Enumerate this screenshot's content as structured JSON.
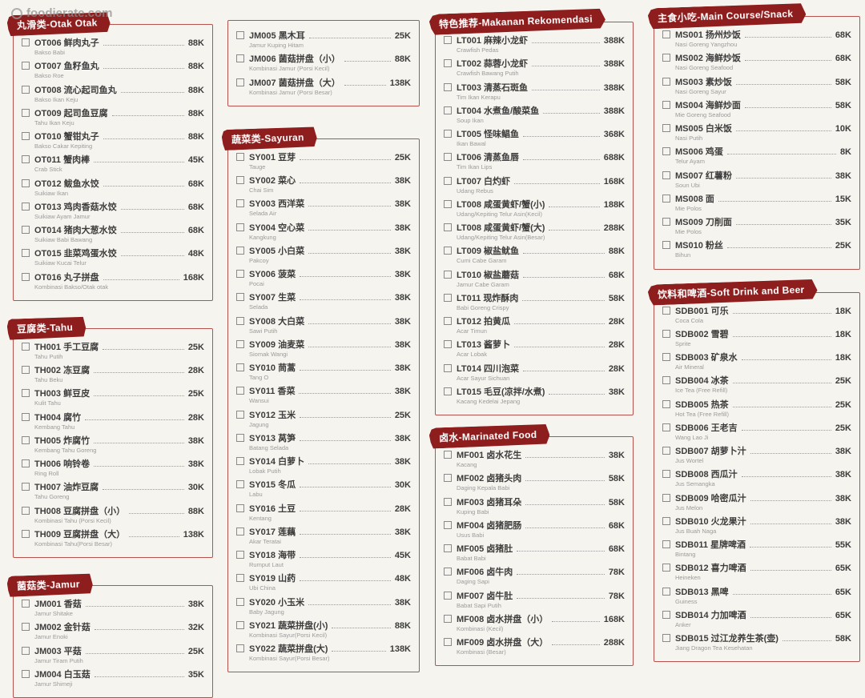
{
  "watermark": "foodierate.com",
  "colors": {
    "accent": "#8e1d1d",
    "border": "#b5524e",
    "background": "#f6f4ee"
  },
  "sections": {
    "otak": {
      "title": "丸滑类-Otak Otak",
      "items": [
        {
          "code": "OT006",
          "name": "鲜肉丸子",
          "sub": "Bakso Babi",
          "price": "88K"
        },
        {
          "code": "OT007",
          "name": "鱼籽鱼丸",
          "sub": "Bakso Roe",
          "price": "88K"
        },
        {
          "code": "OT008",
          "name": "流心起司鱼丸",
          "sub": "Bakso Ikan Keju",
          "price": "88K"
        },
        {
          "code": "OT009",
          "name": "起司鱼豆腐",
          "sub": "Tahu Ikan Keju",
          "price": "88K"
        },
        {
          "code": "OT010",
          "name": "蟹钳丸子",
          "sub": "Bakso Cakar Kepiting",
          "price": "88K"
        },
        {
          "code": "OT011",
          "name": "蟹肉棒",
          "sub": "Crab Stick",
          "price": "45K"
        },
        {
          "code": "OT012",
          "name": "鲅鱼水饺",
          "sub": "Suikiaw Ikan",
          "price": "68K"
        },
        {
          "code": "OT013",
          "name": "鸡肉香菇水饺",
          "sub": "Suikiaw Ayam Jamur",
          "price": "68K"
        },
        {
          "code": "OT014",
          "name": "猪肉大葱水饺",
          "sub": "Suikiaw Babi Bawang",
          "price": "68K"
        },
        {
          "code": "OT015",
          "name": "韭菜鸡蛋水饺",
          "sub": "Suikiaw Kucai Telur",
          "price": "48K"
        },
        {
          "code": "OT016",
          "name": "丸子拼盘",
          "sub": "Kombinasi Bakso/Otak otak",
          "price": "168K"
        }
      ]
    },
    "tahu": {
      "title": "豆腐类-Tahu",
      "items": [
        {
          "code": "TH001",
          "name": "手工豆腐",
          "sub": "Tahu Putih",
          "price": "25K"
        },
        {
          "code": "TH002",
          "name": "冻豆腐",
          "sub": "Tahu Beku",
          "price": "28K"
        },
        {
          "code": "TH003",
          "name": "鲜豆皮",
          "sub": "Kulit Tahu",
          "price": "25K"
        },
        {
          "code": "TH004",
          "name": "腐竹",
          "sub": "Kembang Tahu",
          "price": "28K"
        },
        {
          "code": "TH005",
          "name": "炸腐竹",
          "sub": "Kembang Tahu Goreng",
          "price": "38K"
        },
        {
          "code": "TH006",
          "name": "响铃卷",
          "sub": "Ring Roll",
          "price": "38K"
        },
        {
          "code": "TH007",
          "name": "油炸豆腐",
          "sub": "Tahu Goreng",
          "price": "30K"
        },
        {
          "code": "TH008",
          "name": "豆腐拼盘（小）",
          "sub": "Kombinasi Tahu (Porsi Kecil)",
          "price": "88K"
        },
        {
          "code": "TH009",
          "name": "豆腐拼盘（大）",
          "sub": "Kombinasi Tahu(Porsi Besar)",
          "price": "138K"
        }
      ]
    },
    "jamur": {
      "title": "菌菇类-Jamur",
      "items": [
        {
          "code": "JM001",
          "name": "香菇",
          "sub": "Jamur Shitake",
          "price": "38K"
        },
        {
          "code": "JM002",
          "name": "金针菇",
          "sub": "Jamur Enoki",
          "price": "32K"
        },
        {
          "code": "JM003",
          "name": "平菇",
          "sub": "Jamur Tiram Putih",
          "price": "25K"
        },
        {
          "code": "JM004",
          "name": "白玉菇",
          "sub": "Jamur Shimeji",
          "price": "35K"
        }
      ]
    },
    "jamur2": {
      "title": "",
      "items": [
        {
          "code": "JM005",
          "name": "黑木耳",
          "sub": "Jamur Kuping Hitam",
          "price": "25K"
        },
        {
          "code": "JM006",
          "name": "菌菇拼盘（小）",
          "sub": "Kombinasi Jamur (Porsi Kecil)",
          "price": "88K"
        },
        {
          "code": "JM007",
          "name": "菌菇拼盘（大）",
          "sub": "Kombinasi Jamur (Porsi Besar)",
          "price": "138K"
        }
      ]
    },
    "sayuran": {
      "title": "蔬菜类-Sayuran",
      "items": [
        {
          "code": "SY001",
          "name": "豆芽",
          "sub": "Tauge",
          "price": "25K"
        },
        {
          "code": "SY002",
          "name": "菜心",
          "sub": "Chai Sim",
          "price": "38K"
        },
        {
          "code": "SY003",
          "name": "西洋菜",
          "sub": "Selada Air",
          "price": "38K"
        },
        {
          "code": "SY004",
          "name": "空心菜",
          "sub": "Kangkung",
          "price": "38K"
        },
        {
          "code": "SY005",
          "name": "小白菜",
          "sub": "Pakcoy",
          "price": "38K"
        },
        {
          "code": "SY006",
          "name": "菠菜",
          "sub": "Pocai",
          "price": "38K"
        },
        {
          "code": "SY007",
          "name": "生菜",
          "sub": "Selada",
          "price": "38K"
        },
        {
          "code": "SY008",
          "name": "大白菜",
          "sub": "Sawi Putih",
          "price": "38K"
        },
        {
          "code": "SY009",
          "name": "油麦菜",
          "sub": "Siomak Wangi",
          "price": "38K"
        },
        {
          "code": "SY010",
          "name": "茼蒿",
          "sub": "Tang O",
          "price": "38K"
        },
        {
          "code": "SY011",
          "name": "香菜",
          "sub": "Wansui",
          "price": "38K"
        },
        {
          "code": "SY012",
          "name": "玉米",
          "sub": "Jagung",
          "price": "25K"
        },
        {
          "code": "SY013",
          "name": "莴笋",
          "sub": "Batang Selada",
          "price": "38K"
        },
        {
          "code": "SY014",
          "name": "白萝卜",
          "sub": "Lobak Putih",
          "price": "38K"
        },
        {
          "code": "SY015",
          "name": "冬瓜",
          "sub": "Labu",
          "price": "30K"
        },
        {
          "code": "SY016",
          "name": "土豆",
          "sub": "Kentang",
          "price": "28K"
        },
        {
          "code": "SY017",
          "name": "莲藕",
          "sub": "Akar Teratai",
          "price": "38K"
        },
        {
          "code": "SY018",
          "name": "海带",
          "sub": "Rumput Laut",
          "price": "45K"
        },
        {
          "code": "SY019",
          "name": "山药",
          "sub": "Ubi China",
          "price": "48K"
        },
        {
          "code": "SY020",
          "name": "小玉米",
          "sub": "Baby Jagung",
          "price": "38K"
        },
        {
          "code": "SY021",
          "name": "蔬菜拼盘(小)",
          "sub": "Kombinasi Sayur(Porsi Kecil)",
          "price": "88K"
        },
        {
          "code": "SY022",
          "name": "蔬菜拼盘(大)",
          "sub": "Kombinasi Sayur(Porsi Besar)",
          "price": "138K"
        }
      ]
    },
    "rekomendasi": {
      "title": "特色推荐-Makanan Rekomendasi",
      "items": [
        {
          "code": "LT001",
          "name": "麻辣小龙虾",
          "sub": "Crawfish Pedas",
          "price": "388K"
        },
        {
          "code": "LT002",
          "name": "蒜蓉小龙虾",
          "sub": "Crawfish Bawang Putih",
          "price": "388K"
        },
        {
          "code": "LT003",
          "name": "清蒸石斑鱼",
          "sub": "Tim Ikan Kerapu",
          "price": "388K"
        },
        {
          "code": "LT004",
          "name": "水煮鱼/酸菜鱼",
          "sub": "Soup Ikan",
          "price": "388K"
        },
        {
          "code": "LT005",
          "name": "怪味鲳鱼",
          "sub": "Ikan Bawal",
          "price": "368K"
        },
        {
          "code": "LT006",
          "name": "清蒸鱼唇",
          "sub": "Tim Ikan Lips",
          "price": "688K"
        },
        {
          "code": "LT007",
          "name": "白灼虾",
          "sub": "Udang Rebus",
          "price": "168K"
        },
        {
          "code": "LT008",
          "name": "咸蛋黄虾/蟹(小)",
          "sub": "Udang/Kepiting Telur Asin(Kecil)",
          "price": "188K"
        },
        {
          "code": "LT008",
          "name": "咸蛋黄虾/蟹(大)",
          "sub": "Udang/Kepiting Telur Asin(Besar)",
          "price": "288K"
        },
        {
          "code": "LT009",
          "name": "椒盐鱿鱼",
          "sub": "Cumi Cabe Garam",
          "price": "88K"
        },
        {
          "code": "LT010",
          "name": "椒盐蘑菇",
          "sub": "Jamur Cabe Garam",
          "price": "68K"
        },
        {
          "code": "LT011",
          "name": "现炸酥肉",
          "sub": "Babi Goreng Crispy",
          "price": "58K"
        },
        {
          "code": "LT012",
          "name": "拍黄瓜",
          "sub": "Acar Timun",
          "price": "28K"
        },
        {
          "code": "LT013",
          "name": "酱萝卜",
          "sub": "Acar Lobak",
          "price": "28K"
        },
        {
          "code": "LT014",
          "name": "四川泡菜",
          "sub": "Acar Sayur Sichuan",
          "price": "28K"
        },
        {
          "code": "LT015",
          "name": "毛豆(凉拌/水煮)",
          "sub": "Kacang Kedelai Jepang",
          "price": "38K"
        }
      ]
    },
    "marinated": {
      "title": "卤水-Marinated Food",
      "items": [
        {
          "code": "MF001",
          "name": "卤水花生",
          "sub": "Kacang",
          "price": "38K"
        },
        {
          "code": "MF002",
          "name": "卤猪头肉",
          "sub": "Daging Kepala Babi",
          "price": "58K"
        },
        {
          "code": "MF003",
          "name": "卤猪耳朵",
          "sub": "Kuping Babi",
          "price": "58K"
        },
        {
          "code": "MF004",
          "name": "卤猪肥肠",
          "sub": "Usus Babi",
          "price": "68K"
        },
        {
          "code": "MF005",
          "name": "卤猪肚",
          "sub": "Babat Babi",
          "price": "68K"
        },
        {
          "code": "MF006",
          "name": "卤牛肉",
          "sub": "Daging Sapi",
          "price": "78K"
        },
        {
          "code": "MF007",
          "name": "卤牛肚",
          "sub": "Babat Sapi Putih",
          "price": "78K"
        },
        {
          "code": "MF008",
          "name": "卤水拼盘（小）",
          "sub": "Kombinasi (Kecil)",
          "price": "168K"
        },
        {
          "code": "MF009",
          "name": "卤水拼盘（大）",
          "sub": "Kombinasi (Besar)",
          "price": "288K"
        }
      ]
    },
    "main": {
      "title": "主食小吃-Main Course/Snack",
      "items": [
        {
          "code": "MS001",
          "name": "扬州炒饭",
          "sub": "Nasi Goreng Yangzhou",
          "price": "68K"
        },
        {
          "code": "MS002",
          "name": "海鲜炒饭",
          "sub": "Nasi Goreng Seafood",
          "price": "68K"
        },
        {
          "code": "MS003",
          "name": "素炒饭",
          "sub": "Nasi Goreng Sayur",
          "price": "58K"
        },
        {
          "code": "MS004",
          "name": "海鲜炒面",
          "sub": "Mie Goreng Seafood",
          "price": "58K"
        },
        {
          "code": "MS005",
          "name": "白米饭",
          "sub": "Nasi Putih",
          "price": "10K"
        },
        {
          "code": "MS006",
          "name": "鸡蛋",
          "sub": "Telur Ayam",
          "price": "8K"
        },
        {
          "code": "MS007",
          "name": "红薯粉",
          "sub": "Soun Ubi",
          "price": "38K"
        },
        {
          "code": "MS008",
          "name": "面",
          "sub": "Mie Polos",
          "price": "15K"
        },
        {
          "code": "MS009",
          "name": "刀削面",
          "sub": "Mie Polos",
          "price": "35K"
        },
        {
          "code": "MS010",
          "name": "粉丝",
          "sub": "Bihun",
          "price": "25K"
        }
      ]
    },
    "drinks": {
      "title": "饮料和啤酒-Soft Drink and Beer",
      "items": [
        {
          "code": "SDB001",
          "name": "可乐",
          "sub": "Coca Cola",
          "price": "18K"
        },
        {
          "code": "SDB002",
          "name": "雪碧",
          "sub": "Sprite",
          "price": "18K"
        },
        {
          "code": "SDB003",
          "name": "矿泉水",
          "sub": "Air Mineral",
          "price": "18K"
        },
        {
          "code": "SDB004",
          "name": "冰茶",
          "sub": "Ice Tea (Free Refill)",
          "price": "25K"
        },
        {
          "code": "SDB005",
          "name": "热茶",
          "sub": "Hot Tea (Free Refill)",
          "price": "25K"
        },
        {
          "code": "SDB006",
          "name": "王老吉",
          "sub": "Wang Lao Ji",
          "price": "25K"
        },
        {
          "code": "SDB007",
          "name": "胡萝卜汁",
          "sub": "Jus Wortel",
          "price": "38K"
        },
        {
          "code": "SDB008",
          "name": "西瓜汁",
          "sub": "Jus Semangka",
          "price": "38K"
        },
        {
          "code": "SDB009",
          "name": "哈密瓜汁",
          "sub": "Jus Melon",
          "price": "38K"
        },
        {
          "code": "SDB010",
          "name": "火龙果汁",
          "sub": "Jus Buah Naga",
          "price": "38K"
        },
        {
          "code": "SDB011",
          "name": "星牌啤酒",
          "sub": "Bintang",
          "price": "55K"
        },
        {
          "code": "SDB012",
          "name": "喜力啤酒",
          "sub": "Heineken",
          "price": "65K"
        },
        {
          "code": "SDB013",
          "name": "黑啤",
          "sub": "Guiness",
          "price": "65K"
        },
        {
          "code": "SDB014",
          "name": "力加啤酒",
          "sub": "Anker",
          "price": "65K"
        },
        {
          "code": "SDB015",
          "name": "过江龙养生茶(壶)",
          "sub": "Jiang Dragon Tea Kesehatan",
          "price": "58K"
        }
      ]
    }
  }
}
